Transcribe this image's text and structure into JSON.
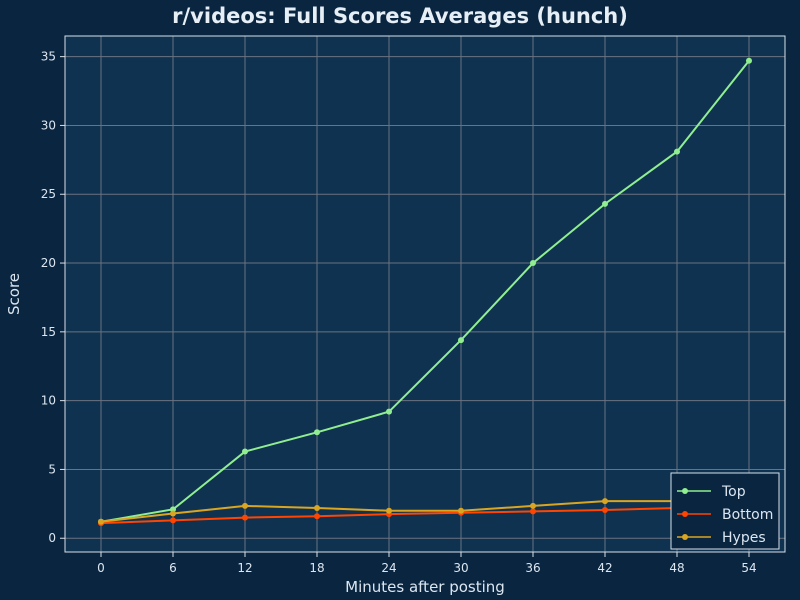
{
  "chart_data": {
    "type": "line",
    "title": "r/videos: Full Scores Averages (hunch)",
    "xlabel": "Minutes after posting",
    "ylabel": "Score",
    "x": [
      0,
      6,
      12,
      18,
      24,
      30,
      36,
      42,
      48,
      54
    ],
    "xlim": [
      -3,
      57
    ],
    "ylim": [
      -1,
      36.5
    ],
    "xticks": [
      0,
      6,
      12,
      18,
      24,
      30,
      36,
      42,
      48,
      54
    ],
    "yticks": [
      0,
      5,
      10,
      15,
      20,
      25,
      30,
      35
    ],
    "grid": true,
    "legend_position": "bottom-right",
    "series": [
      {
        "name": "Top",
        "color": "#90ee90",
        "values": [
          1.2,
          2.1,
          6.3,
          7.7,
          9.2,
          14.4,
          20.0,
          24.3,
          28.1,
          34.7
        ]
      },
      {
        "name": "Bottom",
        "color": "#ff4500",
        "values": [
          1.1,
          1.3,
          1.5,
          1.6,
          1.75,
          1.85,
          1.95,
          2.05,
          2.2,
          2.3
        ]
      },
      {
        "name": "Hypes",
        "color": "#daa520",
        "values": [
          1.2,
          1.8,
          2.35,
          2.2,
          2.0,
          2.0,
          2.35,
          2.7,
          2.7,
          2.7
        ]
      }
    ]
  },
  "colors": {
    "background": "#0a2540",
    "plot_background": "#0e3250",
    "grid": "#6b7280",
    "frame": "#d8e0e8"
  }
}
